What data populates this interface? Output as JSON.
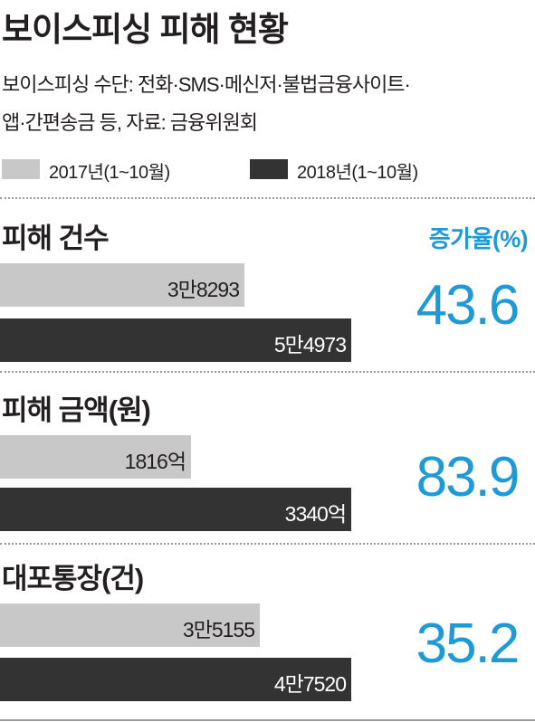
{
  "title": "보이스피싱 피해 현황",
  "subtitle_line1": "보이스피싱 수단: 전화·SMS·메신저·불법금융사이트·",
  "subtitle_line2": "앱·간편송금 등, 자료: 금융위원회",
  "colors": {
    "y2017": "#c8c8c8",
    "y2018": "#333333",
    "accent": "#1e9ad6"
  },
  "chart_data": {
    "type": "bar",
    "orientation": "horizontal",
    "title": "보이스피싱 피해 현황",
    "legend": [
      "2017년(1~10월)",
      "2018년(1~10월)"
    ],
    "rate_header": "증가율(%)",
    "panels": [
      {
        "name": "피해 건수",
        "values": [
          38293,
          54973
        ],
        "labels": [
          "3만8293",
          "5만4973"
        ],
        "rate": "43.6"
      },
      {
        "name": "피해 금액(원)",
        "values": [
          1816,
          3340
        ],
        "labels": [
          "1816억",
          "3340억"
        ],
        "rate": "83.9"
      },
      {
        "name": "대포통장(건)",
        "values": [
          35155,
          47520
        ],
        "labels": [
          "3만5155",
          "4만7520"
        ],
        "rate": "35.2"
      }
    ]
  }
}
